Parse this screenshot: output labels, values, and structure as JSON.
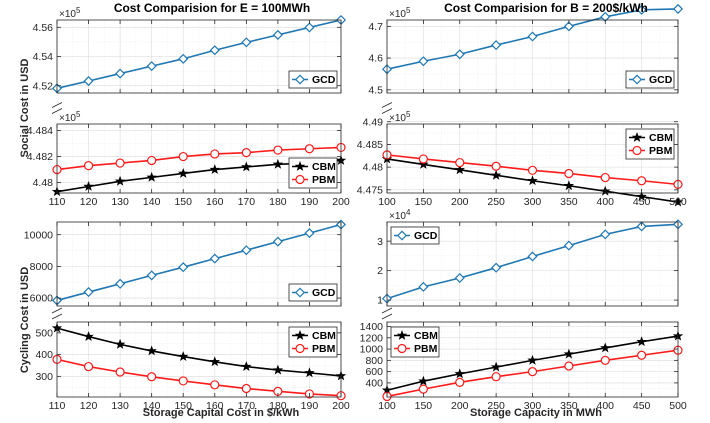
{
  "figure": {
    "titles": [
      "Cost Comparision for E = 100MWh",
      "Cost Comparision for B = 200$/kWh"
    ],
    "y_labels": [
      "Social Cost in USD",
      "Cycling Cost in USD"
    ],
    "x_labels": [
      "Storage Capital Cost in $/kWh",
      "Storage Capacity in MWh"
    ]
  },
  "colors": {
    "GCD": "#1f77b4",
    "CBM": "#000000",
    "PBM": "#ff1a1a"
  },
  "chart_data": [
    {
      "type": "line",
      "title": "Cost Comparision for E = 100MWh",
      "xlabel": "Storage Capital Cost in $/kWh",
      "ylabel": "Social Cost in USD",
      "x": [
        110,
        120,
        130,
        140,
        150,
        160,
        170,
        180,
        190,
        200
      ],
      "x_ticks": [
        "110",
        "120",
        "130",
        "140",
        "150",
        "160",
        "170",
        "180",
        "190",
        "200"
      ],
      "xlim": [
        110,
        200
      ],
      "broken_axis": true,
      "upper": {
        "exponent": "×10",
        "exponent_power": "5",
        "ylim": [
          4.515,
          4.565
        ],
        "y_ticks": [
          4.52,
          4.54,
          4.56
        ],
        "y_tick_labels": [
          "4.52",
          "4.54",
          "4.56"
        ],
        "series": [
          {
            "name": "GCD",
            "values": [
              4.5182,
              4.5232,
              4.5283,
              4.5334,
              4.5384,
              4.5443,
              4.5497,
              4.5548,
              4.5599,
              4.565
            ]
          }
        ]
      },
      "lower": {
        "exponent": "×10",
        "exponent_power": "5",
        "ylim": [
          4.4792,
          4.4845
        ],
        "y_ticks": [
          4.48,
          4.482,
          4.484
        ],
        "y_tick_labels": [
          "4.48",
          "4.482",
          "4.484"
        ],
        "series": [
          {
            "name": "CBM",
            "values": [
              4.4793,
              4.4797,
              4.4801,
              4.4804,
              4.4807,
              4.481,
              4.4812,
              4.4814,
              4.4815,
              4.4817
            ]
          },
          {
            "name": "PBM",
            "values": [
              4.481,
              4.4813,
              4.4815,
              4.4817,
              4.482,
              4.4822,
              4.4823,
              4.4825,
              4.4826,
              4.4827
            ]
          }
        ]
      }
    },
    {
      "type": "line",
      "title": "Cost Comparision for B = 200$/kWh",
      "xlabel": "",
      "ylabel": "",
      "x": [
        100,
        150,
        200,
        250,
        300,
        350,
        400,
        450,
        500
      ],
      "x_ticks": [
        "100",
        "150",
        "200",
        "250",
        "300",
        "350",
        "400",
        "450",
        "500"
      ],
      "xlim": [
        100,
        500
      ],
      "broken_axis": true,
      "upper": {
        "exponent": "×10",
        "exponent_power": "5",
        "ylim": [
          4.49,
          4.72
        ],
        "y_ticks": [
          4.5,
          4.6,
          4.7
        ],
        "y_tick_labels": [
          "4.5",
          "4.6",
          "4.7"
        ],
        "series": [
          {
            "name": "GCD",
            "values": [
              4.565,
              4.59,
              4.612,
              4.641,
              4.668,
              4.7,
              4.73,
              4.752,
              4.755
            ]
          }
        ]
      },
      "lower": {
        "exponent": "×10",
        "exponent_power": "5",
        "ylim": [
          4.4743,
          4.4895
        ],
        "y_ticks": [
          4.475,
          4.48,
          4.485,
          4.49
        ],
        "y_tick_labels": [
          "4.475",
          "4.48",
          "4.485",
          "4.49"
        ],
        "series": [
          {
            "name": "CBM",
            "values": [
              4.4818,
              4.4806,
              4.4794,
              4.4782,
              4.477,
              4.4759,
              4.4747,
              4.4735,
              4.4723
            ]
          },
          {
            "name": "PBM",
            "values": [
              4.4827,
              4.4818,
              4.481,
              4.4802,
              4.4793,
              4.4786,
              4.4777,
              4.477,
              4.4762
            ]
          }
        ]
      }
    },
    {
      "type": "line",
      "title": "",
      "xlabel": "Storage Capital Cost in $/kWh",
      "ylabel": "Cycling Cost in USD",
      "x": [
        110,
        120,
        130,
        140,
        150,
        160,
        170,
        180,
        190,
        200
      ],
      "x_ticks": [
        "110",
        "120",
        "130",
        "140",
        "150",
        "160",
        "170",
        "180",
        "190",
        "200"
      ],
      "xlim": [
        110,
        200
      ],
      "broken_axis": true,
      "upper": {
        "exponent": "",
        "exponent_power": "",
        "ylim": [
          5500,
          10800
        ],
        "y_ticks": [
          6000,
          8000,
          10000
        ],
        "y_tick_labels": [
          "6000",
          "8000",
          "10000"
        ],
        "series": [
          {
            "name": "GCD",
            "values": [
              5850,
              6380,
              6900,
              7430,
              7950,
              8490,
              9020,
              9560,
              10100,
              10640
            ]
          }
        ]
      },
      "lower": {
        "exponent": "",
        "exponent_power": "",
        "ylim": [
          205,
          550
        ],
        "y_ticks": [
          300,
          400,
          500
        ],
        "y_tick_labels": [
          "300",
          "400",
          "500"
        ],
        "series": [
          {
            "name": "CBM",
            "values": [
              522,
              483,
              447,
              417,
              391,
              367,
              345,
              329,
              316,
              302
            ]
          },
          {
            "name": "PBM",
            "values": [
              378,
              345,
              320,
              298,
              279,
              261,
              244,
              231,
              219,
              211
            ]
          }
        ]
      }
    },
    {
      "type": "line",
      "title": "",
      "xlabel": "Storage Capacity in MWh",
      "ylabel": "",
      "x": [
        100,
        150,
        200,
        250,
        300,
        350,
        400,
        450,
        500
      ],
      "x_ticks": [
        "100",
        "150",
        "200",
        "250",
        "300",
        "350",
        "400",
        "450",
        "500"
      ],
      "xlim": [
        100,
        500
      ],
      "broken_axis": true,
      "upper": {
        "exponent": "×10",
        "exponent_power": "4",
        "ylim": [
          0.8,
          3.65
        ],
        "y_ticks": [
          1,
          2,
          3
        ],
        "y_tick_labels": [
          "1",
          "2",
          "3"
        ],
        "series": [
          {
            "name": "GCD",
            "values": [
              1.05,
              1.45,
              1.75,
              2.1,
              2.48,
              2.85,
              3.23,
              3.5,
              3.57
            ]
          }
        ]
      },
      "lower": {
        "exponent": "",
        "exponent_power": "",
        "ylim": [
          150,
          1480
        ],
        "y_ticks": [
          400,
          600,
          800,
          1000,
          1200,
          1400
        ],
        "y_tick_labels": [
          "400",
          "600",
          "800",
          "1000",
          "1200",
          "1400"
        ],
        "series": [
          {
            "name": "CBM",
            "values": [
              270,
              430,
              560,
              680,
              800,
              910,
              1020,
              1130,
              1230
            ]
          },
          {
            "name": "PBM",
            "values": [
              160,
              290,
              410,
              510,
              600,
              700,
              800,
              890,
              980
            ]
          }
        ]
      }
    }
  ]
}
